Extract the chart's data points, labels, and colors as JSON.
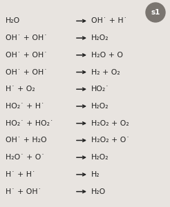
{
  "background_color": "#e8e4e0",
  "badge_color": "#7a7570",
  "badge_text": "s1",
  "badge_text_color": "#ffffff",
  "text_color": "#222222",
  "arrow_color": "#222222",
  "font_size": 7.8,
  "figsize": [
    2.46,
    3.0
  ],
  "dpi": 100,
  "reactions": [
    {
      "left": "H₂O",
      "right": "OH˙ + H˙"
    },
    {
      "left": "OH˙ + OH˙",
      "right": "H₂O₂"
    },
    {
      "left": "OH˙ + OH˙",
      "right": "H₂O + O"
    },
    {
      "left": "OH˙ + OH˙",
      "right": "H₂ + O₂"
    },
    {
      "left": "H˙ + O₂",
      "right": "HO₂˙"
    },
    {
      "left": "HO₂˙ + H˙",
      "right": "H₂O₂"
    },
    {
      "left": "HO₂˙ + HO₂˙",
      "right": "H₂O₂ + O₂"
    },
    {
      "left": "OH˙ + H₂O",
      "right": "H₂O₂ + O˙"
    },
    {
      "left": "H₂O˙ + O˙",
      "right": "H₂O₂"
    },
    {
      "left": "H˙ + H˙",
      "right": "H₂"
    },
    {
      "left": "H˙ + OH˙",
      "right": "H₂O"
    }
  ]
}
